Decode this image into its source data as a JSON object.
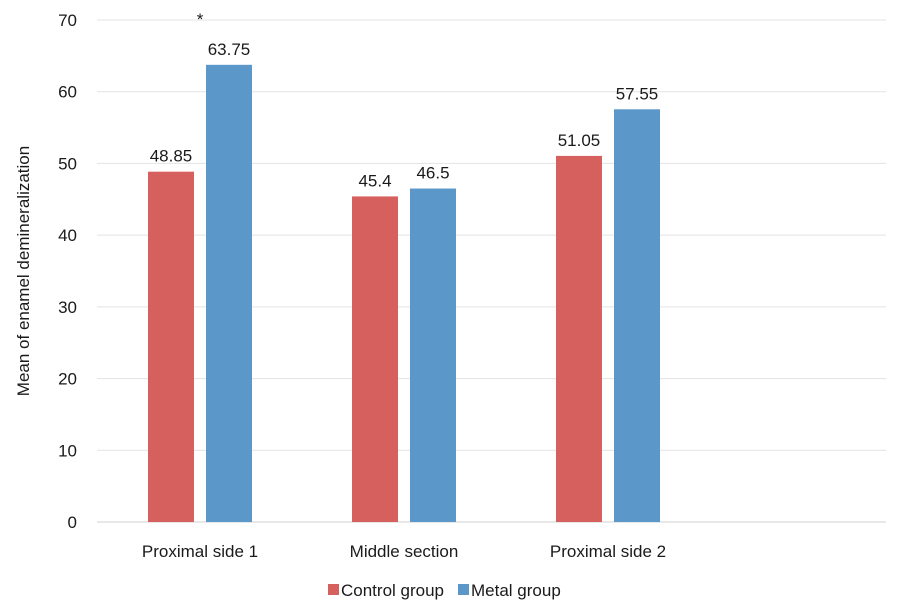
{
  "chart_data": {
    "type": "bar",
    "title": "",
    "xlabel": "",
    "ylabel": "Mean of enamel demineralization",
    "ylim": [
      0,
      70
    ],
    "yticks": [
      0,
      10,
      20,
      30,
      40,
      50,
      60,
      70
    ],
    "categories": [
      "Proximal side 1",
      "Middle section",
      "Proximal side 2"
    ],
    "series": [
      {
        "name": "Control group",
        "values": [
          48.85,
          45.4,
          51.05
        ],
        "labels": [
          "48.85",
          "45.4",
          "51.05"
        ],
        "color": "#d6605e"
      },
      {
        "name": "Metal group",
        "values": [
          63.75,
          46.5,
          57.55
        ],
        "labels": [
          "63.75",
          "46.5",
          "57.55"
        ],
        "color": "#5b98c9"
      }
    ],
    "annotations": [
      {
        "text": "*",
        "category": "Proximal side 1"
      }
    ],
    "grid": true,
    "gridColor": "#e3e3e3",
    "legend": "bottom"
  }
}
